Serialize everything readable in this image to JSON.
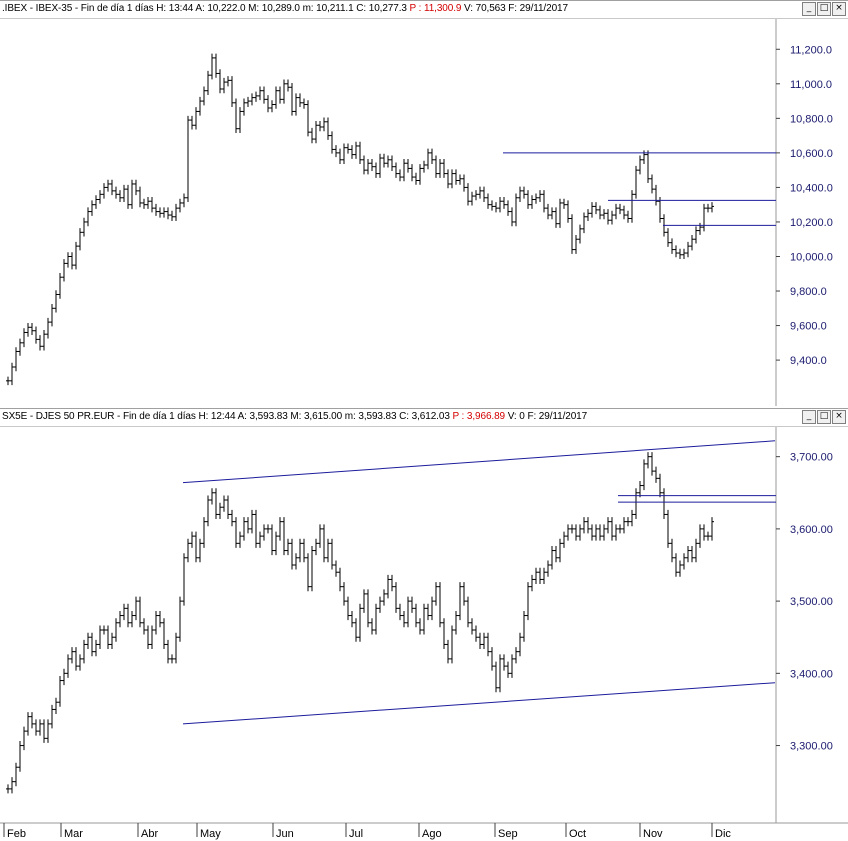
{
  "panels": [
    {
      "id": "ibex",
      "header": {
        "symbol": ".IBEX - IBEX-35 - Fin de día 1 días",
        "h": "H: 13:44",
        "a": "A: 10,222.0",
        "m": "M: 10,289.0",
        "mn": "m: 10,211.1",
        "c": "C: 10,277.3",
        "p": "P : 11,300.9",
        "v": "V: 70,563",
        "f": "F: 29/11/2017"
      },
      "window_buttons": [
        "_",
        "□",
        "×"
      ]
    },
    {
      "id": "sx5e",
      "header": {
        "symbol": "SX5E - DJES 50 PR.EUR - Fin de día 1 días",
        "h": "H: 12:44",
        "a": "A: 3,593.83",
        "m": "M: 3,615.00",
        "mn": "m: 3,593.83",
        "c": "C: 3,612.03",
        "p": "P : 3,966.89",
        "v": "V: 0",
        "f": "F: 29/11/2017"
      },
      "window_buttons": [
        "_",
        "□",
        "×"
      ]
    }
  ],
  "chart_data": [
    {
      "type": "line",
      "title": ".IBEX - IBEX-35",
      "ylim": [
        9250,
        11300
      ],
      "y_ticks": [
        "9,400.0",
        "9,600.0",
        "9,800.0",
        "10,000.0",
        "10,200.0",
        "10,400.0",
        "10,600.0",
        "10,800.0",
        "11,000.0",
        "11,200.0"
      ],
      "y_tick_values": [
        9400,
        9600,
        9800,
        10000,
        10200,
        10400,
        10600,
        10800,
        11000,
        11200
      ],
      "x_months": [
        "Feb",
        "Mar",
        "Abr",
        "May",
        "Jun",
        "Jul",
        "Ago",
        "Sep",
        "Oct",
        "Nov",
        "Dic"
      ],
      "series": [
        {
          "name": "IBEX-35",
          "x": [
            0,
            4,
            8,
            12,
            16,
            20,
            24,
            28,
            32,
            36,
            40,
            44,
            48,
            52,
            56,
            60,
            64,
            68,
            72,
            76,
            80,
            84,
            88,
            92,
            96,
            100,
            104,
            108,
            112,
            116,
            120,
            124,
            128,
            132,
            136,
            140,
            144,
            148,
            152,
            156,
            160,
            164,
            168,
            172,
            176,
            180,
            184,
            188,
            192,
            196,
            200,
            204,
            208,
            212,
            216,
            220,
            224,
            228,
            232,
            236,
            240,
            244,
            248,
            252,
            256,
            260,
            264,
            268,
            272,
            276,
            280,
            284,
            288,
            292,
            296,
            300,
            304,
            308,
            312,
            316,
            320,
            324,
            328,
            332,
            336,
            340,
            344,
            348,
            352,
            356,
            360,
            364,
            368,
            372,
            376,
            380,
            384,
            388,
            392,
            396,
            400,
            404,
            408,
            412,
            416,
            420,
            424,
            428,
            432,
            436,
            440,
            444,
            448,
            452,
            456,
            460,
            464,
            468,
            472,
            476,
            480,
            484,
            488,
            492,
            496,
            500,
            504,
            508,
            512,
            516,
            520,
            524,
            528,
            532,
            536,
            540,
            544,
            548,
            552,
            556,
            560,
            564,
            568,
            572,
            576,
            580,
            584,
            588,
            592,
            596,
            600,
            604,
            608,
            612,
            616,
            620,
            624,
            628,
            632,
            636,
            640,
            644,
            648,
            652,
            656,
            660,
            664,
            668,
            672,
            676,
            680,
            684,
            688,
            692,
            696,
            700,
            704
          ],
          "values": [
            9280,
            9360,
            9450,
            9500,
            9560,
            9590,
            9570,
            9520,
            9480,
            9550,
            9620,
            9700,
            9780,
            9880,
            9960,
            10000,
            9950,
            10060,
            10140,
            10200,
            10260,
            10300,
            10330,
            10360,
            10400,
            10420,
            10380,
            10360,
            10340,
            10390,
            10300,
            10420,
            10380,
            10310,
            10300,
            10320,
            10280,
            10260,
            10250,
            10260,
            10240,
            10230,
            10280,
            10310,
            10340,
            10790,
            10760,
            10840,
            10900,
            10960,
            11050,
            11150,
            11060,
            10970,
            11010,
            11020,
            10890,
            10740,
            10840,
            10890,
            10900,
            10920,
            10930,
            10960,
            10910,
            10860,
            10880,
            10960,
            10910,
            11000,
            10980,
            10840,
            10920,
            10890,
            10880,
            10720,
            10680,
            10760,
            10750,
            10780,
            10700,
            10620,
            10600,
            10560,
            10630,
            10620,
            10590,
            10640,
            10560,
            10500,
            10540,
            10520,
            10480,
            10570,
            10540,
            10560,
            10520,
            10480,
            10460,
            10540,
            10510,
            10460,
            10440,
            10510,
            10530,
            10600,
            10560,
            10480,
            10540,
            10480,
            10420,
            10480,
            10440,
            10450,
            10400,
            10320,
            10350,
            10360,
            10380,
            10340,
            10300,
            10290,
            10280,
            10320,
            10300,
            10260,
            10200,
            10340,
            10380,
            10360,
            10300,
            10330,
            10340,
            10360,
            10280,
            10240,
            10260,
            10190,
            10310,
            10300,
            10220,
            10040,
            10100,
            10160,
            10230,
            10250,
            10290,
            10270,
            10240,
            10250,
            10210,
            10240,
            10280,
            10270,
            10240,
            10220,
            10360,
            10500,
            10560,
            10590,
            10450,
            10390,
            10320,
            10220,
            10140,
            10080,
            10040,
            10020,
            10010,
            10020,
            10060,
            10100,
            10150,
            10170,
            10280,
            10280,
            10290
          ]
        }
      ],
      "hlines": [
        {
          "value": 10600,
          "x_start": 503
        },
        {
          "value": 10325,
          "x_start": 608
        },
        {
          "value": 10180,
          "x_start": 663
        }
      ]
    },
    {
      "type": "line",
      "title": "SX5E - DJES 50 PR.EUR",
      "ylim": [
        3208,
        3730
      ],
      "y_ticks": [
        "3,300.00",
        "3,400.00",
        "3,500.00",
        "3,600.00",
        "3,700.00"
      ],
      "y_tick_values": [
        3300,
        3400,
        3500,
        3600,
        3700
      ],
      "x_months": [
        "Feb",
        "Mar",
        "Abr",
        "May",
        "Jun",
        "Jul",
        "Ago",
        "Sep",
        "Oct",
        "Nov",
        "Dic"
      ],
      "series": [
        {
          "name": "SX5E",
          "x": [
            0,
            4,
            8,
            12,
            16,
            20,
            24,
            28,
            32,
            36,
            40,
            44,
            48,
            52,
            56,
            60,
            64,
            68,
            72,
            76,
            80,
            84,
            88,
            92,
            96,
            100,
            104,
            108,
            112,
            116,
            120,
            124,
            128,
            132,
            136,
            140,
            144,
            148,
            152,
            156,
            160,
            164,
            168,
            172,
            176,
            180,
            184,
            188,
            192,
            196,
            200,
            204,
            208,
            212,
            216,
            220,
            224,
            228,
            232,
            236,
            240,
            244,
            248,
            252,
            256,
            260,
            264,
            268,
            272,
            276,
            280,
            284,
            288,
            292,
            296,
            300,
            304,
            308,
            312,
            316,
            320,
            324,
            328,
            332,
            336,
            340,
            344,
            348,
            352,
            356,
            360,
            364,
            368,
            372,
            376,
            380,
            384,
            388,
            392,
            396,
            400,
            404,
            408,
            412,
            416,
            420,
            424,
            428,
            432,
            436,
            440,
            444,
            448,
            452,
            456,
            460,
            464,
            468,
            472,
            476,
            480,
            484,
            488,
            492,
            496,
            500,
            504,
            508,
            512,
            516,
            520,
            524,
            528,
            532,
            536,
            540,
            544,
            548,
            552,
            556,
            560,
            564,
            568,
            572,
            576,
            580,
            584,
            588,
            592,
            596,
            600,
            604,
            608,
            612,
            616,
            620,
            624,
            628,
            632,
            636,
            640,
            644,
            648,
            652,
            656,
            660,
            664,
            668,
            672,
            676,
            680,
            684,
            688,
            692,
            696,
            700,
            704
          ],
          "values": [
            3240,
            3250,
            3270,
            3300,
            3320,
            3340,
            3330,
            3320,
            3330,
            3310,
            3330,
            3350,
            3360,
            3390,
            3400,
            3420,
            3430,
            3410,
            3420,
            3440,
            3450,
            3430,
            3440,
            3460,
            3460,
            3440,
            3450,
            3470,
            3480,
            3490,
            3470,
            3480,
            3500,
            3470,
            3460,
            3440,
            3460,
            3480,
            3470,
            3440,
            3420,
            3420,
            3450,
            3500,
            3560,
            3580,
            3590,
            3560,
            3580,
            3610,
            3640,
            3650,
            3620,
            3630,
            3640,
            3620,
            3610,
            3580,
            3590,
            3610,
            3600,
            3620,
            3580,
            3590,
            3600,
            3600,
            3570,
            3590,
            3610,
            3570,
            3580,
            3550,
            3560,
            3580,
            3560,
            3520,
            3570,
            3580,
            3600,
            3560,
            3580,
            3550,
            3540,
            3520,
            3500,
            3480,
            3470,
            3450,
            3490,
            3510,
            3470,
            3460,
            3490,
            3500,
            3510,
            3530,
            3520,
            3490,
            3480,
            3470,
            3500,
            3490,
            3470,
            3460,
            3490,
            3480,
            3500,
            3520,
            3470,
            3440,
            3420,
            3460,
            3480,
            3520,
            3500,
            3470,
            3460,
            3450,
            3440,
            3450,
            3430,
            3410,
            3380,
            3420,
            3410,
            3400,
            3420,
            3430,
            3450,
            3480,
            3520,
            3530,
            3540,
            3530,
            3540,
            3550,
            3570,
            3560,
            3580,
            3590,
            3600,
            3600,
            3590,
            3600,
            3610,
            3600,
            3590,
            3600,
            3590,
            3600,
            3610,
            3590,
            3600,
            3600,
            3610,
            3610,
            3620,
            3650,
            3660,
            3690,
            3700,
            3680,
            3670,
            3650,
            3620,
            3580,
            3560,
            3540,
            3550,
            3560,
            3570,
            3560,
            3580,
            3600,
            3590,
            3590,
            3610
          ]
        }
      ],
      "trendlines": [
        {
          "x1": 183,
          "y1": 3664,
          "x2": 775,
          "y2": 3722
        },
        {
          "x1": 183,
          "y1": 3330,
          "x2": 775,
          "y2": 3387
        }
      ],
      "hlines": [
        {
          "value": 3646,
          "x_start": 618
        },
        {
          "value": 3637,
          "x_start": 618
        }
      ]
    }
  ]
}
